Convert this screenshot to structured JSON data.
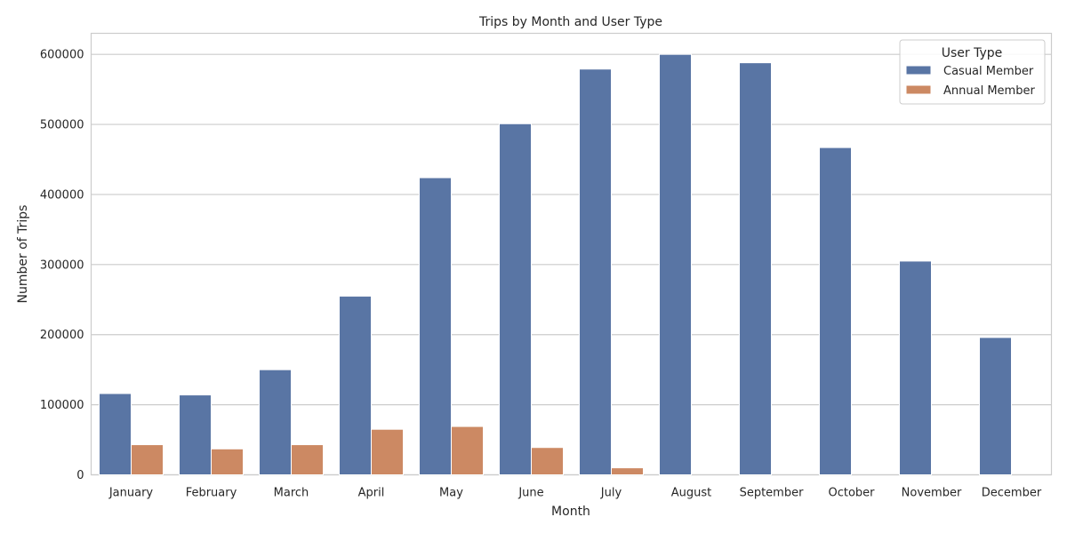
{
  "chart_data": {
    "type": "bar",
    "title": "Trips by Month and User Type",
    "xlabel": "Month",
    "ylabel": "Number of Trips",
    "categories": [
      "January",
      "February",
      "March",
      "April",
      "May",
      "June",
      "July",
      "August",
      "September",
      "October",
      "November",
      "December"
    ],
    "series": [
      {
        "name": "Casual Member",
        "color": "#5975a4",
        "values": [
          116000,
          114000,
          150000,
          255000,
          424000,
          501000,
          579000,
          600000,
          588000,
          467000,
          305000,
          196000
        ]
      },
      {
        "name": "Annual Member",
        "color": "#cc8963",
        "values": [
          43000,
          37000,
          43000,
          65000,
          69000,
          39000,
          10000,
          0,
          0,
          0,
          0,
          0
        ]
      }
    ],
    "ylim": [
      0,
      630000
    ],
    "yticks": [
      0,
      100000,
      200000,
      300000,
      400000,
      500000,
      600000
    ],
    "ytick_labels": [
      "0",
      "100000",
      "200000",
      "300000",
      "400000",
      "500000",
      "600000"
    ],
    "grid": true,
    "legend": {
      "title": "User Type",
      "placement": "top-right"
    }
  }
}
